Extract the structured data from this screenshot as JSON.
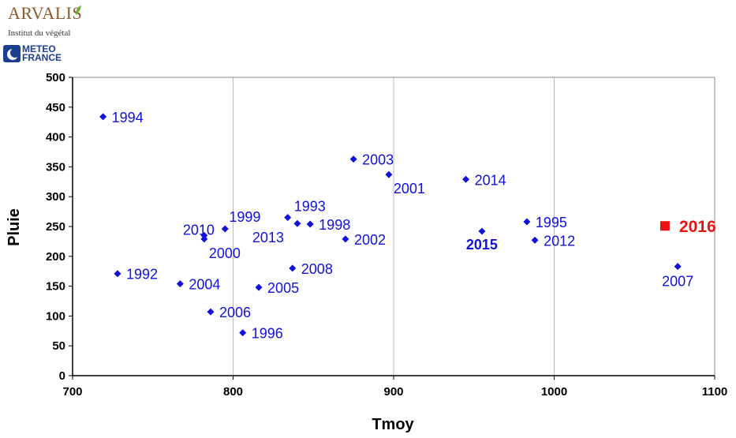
{
  "logos": {
    "arvalis": "ARVALIS",
    "arvalis_sub": "Institut du végétal",
    "meteo_line1": "METEO",
    "meteo_line2": "FRANCE"
  },
  "colors": {
    "series": "#1111dd",
    "highlight": "#ee1111",
    "grid": "#bbbbbb",
    "axis": "#000000"
  },
  "chart_data": {
    "type": "scatter",
    "title": "",
    "xlabel": "Tmoy",
    "ylabel": "Pluie",
    "xlim": [
      700,
      1100
    ],
    "ylim": [
      0,
      500
    ],
    "xticks": [
      "700",
      "800",
      "900",
      "1000",
      "1100"
    ],
    "yticks": [
      "0",
      "50",
      "100",
      "150",
      "200",
      "250",
      "300",
      "350",
      "400",
      "450",
      "500"
    ],
    "grid": "vertical",
    "series": [
      {
        "marker": "diamond",
        "points": [
          {
            "label": "1994",
            "x": 719,
            "y": 434,
            "pos": "right"
          },
          {
            "label": "1992",
            "x": 728,
            "y": 171,
            "pos": "right"
          },
          {
            "label": "2004",
            "x": 767,
            "y": 154,
            "pos": "right"
          },
          {
            "label": "2010",
            "x": 782,
            "y": 235,
            "pos": "above-left"
          },
          {
            "label": "2000",
            "x": 782,
            "y": 229,
            "pos": "below-right"
          },
          {
            "label": "2006",
            "x": 786,
            "y": 107,
            "pos": "right"
          },
          {
            "label": "1999",
            "x": 795,
            "y": 246,
            "pos": "above-right"
          },
          {
            "label": "1996",
            "x": 806,
            "y": 72,
            "pos": "right"
          },
          {
            "label": "2005",
            "x": 816,
            "y": 148,
            "pos": "right"
          },
          {
            "label": "1993",
            "x": 834,
            "y": 265,
            "pos": "above-right"
          },
          {
            "label": "2008",
            "x": 837,
            "y": 180,
            "pos": "right"
          },
          {
            "label": "2013",
            "x": 840,
            "y": 255,
            "pos": "below-right"
          },
          {
            "label": "1998",
            "x": 848,
            "y": 254,
            "pos": "right"
          },
          {
            "label": "2002",
            "x": 870,
            "y": 229,
            "pos": "right"
          },
          {
            "label": "2003",
            "x": 875,
            "y": 363,
            "pos": "right"
          },
          {
            "label": "2001",
            "x": 897,
            "y": 337,
            "pos": "below-right"
          },
          {
            "label": "2014",
            "x": 945,
            "y": 329,
            "pos": "right"
          },
          {
            "label": "2015",
            "x": 955,
            "y": 242,
            "pos": "below-bold"
          },
          {
            "label": "1995",
            "x": 983,
            "y": 258,
            "pos": "right"
          },
          {
            "label": "2012",
            "x": 988,
            "y": 227,
            "pos": "right"
          },
          {
            "label": "2007",
            "x": 1077,
            "y": 183,
            "pos": "below"
          }
        ]
      },
      {
        "marker": "square",
        "points": [
          {
            "label": "2016",
            "x": 1069,
            "y": 251,
            "pos": "right-bold-red"
          }
        ]
      }
    ]
  }
}
